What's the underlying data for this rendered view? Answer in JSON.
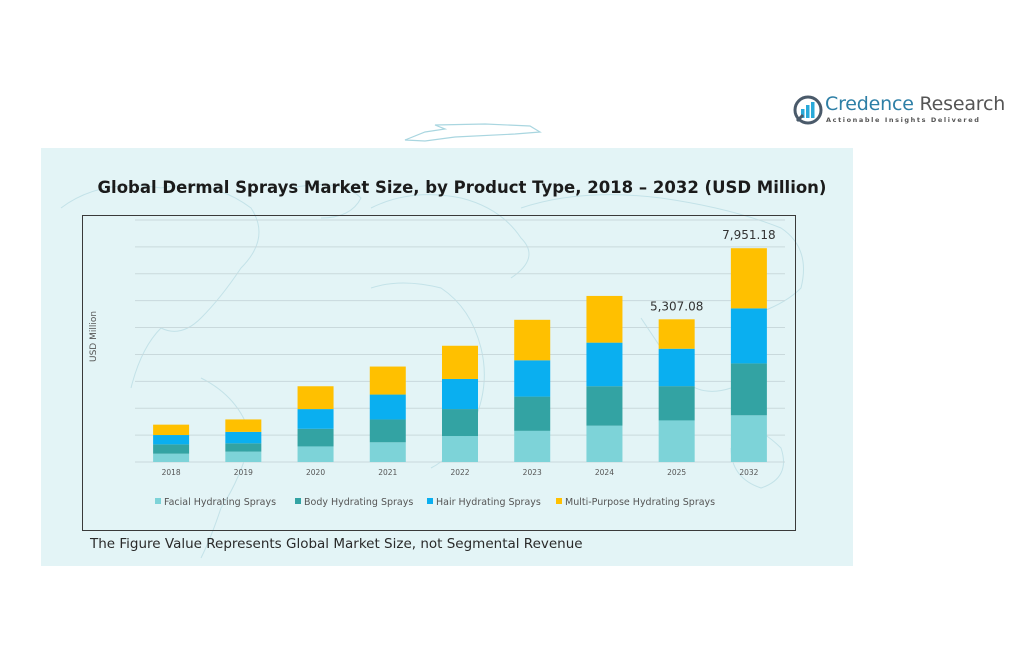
{
  "brand": {
    "name_part1": "Credence",
    "name_part2": "Research",
    "tagline": "Actionable Insights Delivered"
  },
  "footnote": "The Figure Value Represents Global Market Size, not Segmental Revenue",
  "colors": {
    "facial": "#7dd3d8",
    "body": "#33a3a3",
    "hair": "#0aaff0",
    "multi": "#ffc000",
    "panel_bg": "#e3f4f6",
    "gridline": "#c9d9dc"
  },
  "chart_data": {
    "type": "bar",
    "stacked": true,
    "title": "Global Dermal Sprays Market Size, by Product Type, 2018 – 2032 (USD Million)",
    "xlabel": "",
    "ylabel": "USD Million",
    "categories": [
      "2018",
      "2019",
      "2020",
      "2021",
      "2022",
      "2023",
      "2024",
      "2025",
      "2032"
    ],
    "series": [
      {
        "name": "Facial Hydrating Sprays",
        "values": [
          309,
          386,
          579,
          733,
          965,
          1158,
          1351,
          1546,
          1737
        ]
      },
      {
        "name": "Body Hydrating Sprays",
        "values": [
          347,
          309,
          656,
          849,
          1004,
          1274,
          1467,
          1275,
          1930
        ]
      },
      {
        "name": "Hair Hydrating Sprays",
        "values": [
          347,
          425,
          733,
          926,
          1119,
          1351,
          1621,
          1391,
          2046
        ]
      },
      {
        "name": "Multi-Purpose Hydrating Sprays",
        "values": [
          386,
          463,
          849,
          1042,
          1235,
          1505,
          1737,
          1095,
          2238
        ]
      }
    ],
    "data_labels": [
      {
        "category": "2025",
        "text": "5,307.08"
      },
      {
        "category": "2032",
        "text": "7,951.18"
      }
    ],
    "ylim": [
      0,
      9000
    ],
    "grid": true,
    "y_ticks_visible": false,
    "legend_position": "bottom"
  }
}
